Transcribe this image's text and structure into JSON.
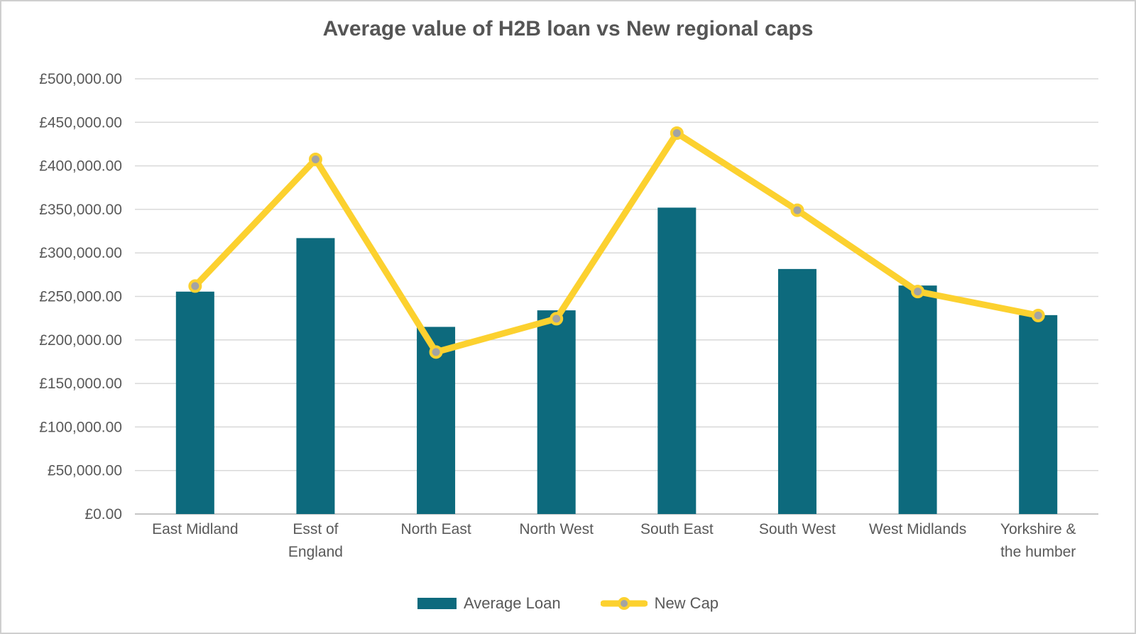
{
  "title": "Average value of H2B loan vs New regional caps",
  "legend": {
    "bar_label": "Average Loan",
    "line_label": "New Cap"
  },
  "colors": {
    "bar": "#0d6a7d",
    "line": "#fcd12f",
    "marker_fill": "#a3a3a3",
    "gridline": "#d9d9d9",
    "axis_line": "#c6c6c6",
    "axis_text": "#595959",
    "title_text": "#555555"
  },
  "chart_data": {
    "type": "bar",
    "subtype": "combo-bar-line",
    "title": "Average value of H2B loan vs New regional caps",
    "xlabel": "",
    "ylabel": "",
    "ylim": [
      0,
      500000
    ],
    "grid": true,
    "legend_position": "bottom",
    "categories": [
      "East Midland",
      "Esst of England",
      "North East",
      "North West",
      "South East",
      "South West",
      "West Midlands",
      "Yorkshire & the humber"
    ],
    "category_lines": [
      [
        "East Midland"
      ],
      [
        "Esst of",
        "England"
      ],
      [
        "North East"
      ],
      [
        "North West"
      ],
      [
        "South East"
      ],
      [
        "South West"
      ],
      [
        "West Midlands"
      ],
      [
        "Yorkshire &",
        "the humber"
      ]
    ],
    "series": [
      {
        "name": "Average Loan",
        "type": "bar",
        "values": [
          255500,
          317000,
          215000,
          234000,
          352000,
          281500,
          262500,
          228500
        ]
      },
      {
        "name": "New Cap",
        "type": "line",
        "values": [
          261900,
          407400,
          186100,
          224400,
          437600,
          349000,
          255600,
          228100
        ]
      }
    ],
    "y_ticks": [
      {
        "value": 0,
        "label": "£0.00"
      },
      {
        "value": 50000,
        "label": "£50,000.00"
      },
      {
        "value": 100000,
        "label": "£100,000.00"
      },
      {
        "value": 150000,
        "label": "£150,000.00"
      },
      {
        "value": 200000,
        "label": "£200,000.00"
      },
      {
        "value": 250000,
        "label": "£250,000.00"
      },
      {
        "value": 300000,
        "label": "£300,000.00"
      },
      {
        "value": 350000,
        "label": "£350,000.00"
      },
      {
        "value": 400000,
        "label": "£400,000.00"
      },
      {
        "value": 450000,
        "label": "£450,000.00"
      },
      {
        "value": 500000,
        "label": "£500,000.00"
      }
    ]
  }
}
